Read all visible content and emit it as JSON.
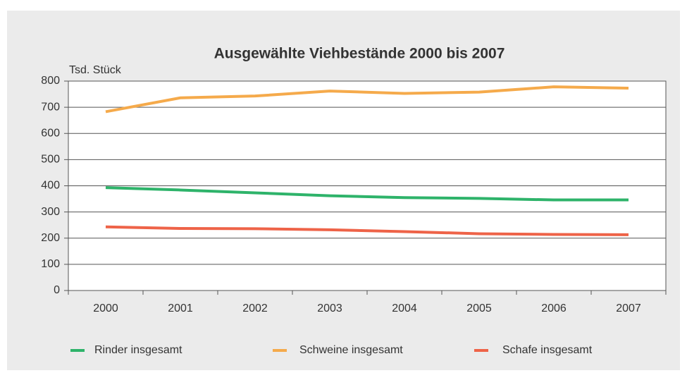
{
  "chart_data": {
    "type": "line",
    "title": "Ausgewählte Viehbestände 2000 bis 2007",
    "y_label": "Tsd. Stück",
    "categories": [
      "2000",
      "2001",
      "2002",
      "2003",
      "2004",
      "2005",
      "2006",
      "2007"
    ],
    "series": [
      {
        "name": "Rinder insgesamt",
        "color": "#2eb36a",
        "values": [
          393,
          384,
          373,
          362,
          355,
          352,
          346,
          346
        ]
      },
      {
        "name": "Schweine insgesamt",
        "color": "#f5aa4b",
        "values": [
          683,
          736,
          743,
          762,
          753,
          758,
          778,
          773
        ]
      },
      {
        "name": "Schafe insgesamt",
        "color": "#ee6348",
        "values": [
          243,
          237,
          236,
          232,
          225,
          217,
          214,
          213
        ]
      }
    ],
    "ylim": [
      0,
      800
    ],
    "yticks": [
      0,
      100,
      200,
      300,
      400,
      500,
      600,
      700,
      800
    ],
    "grid": true,
    "legend": "bottom"
  }
}
